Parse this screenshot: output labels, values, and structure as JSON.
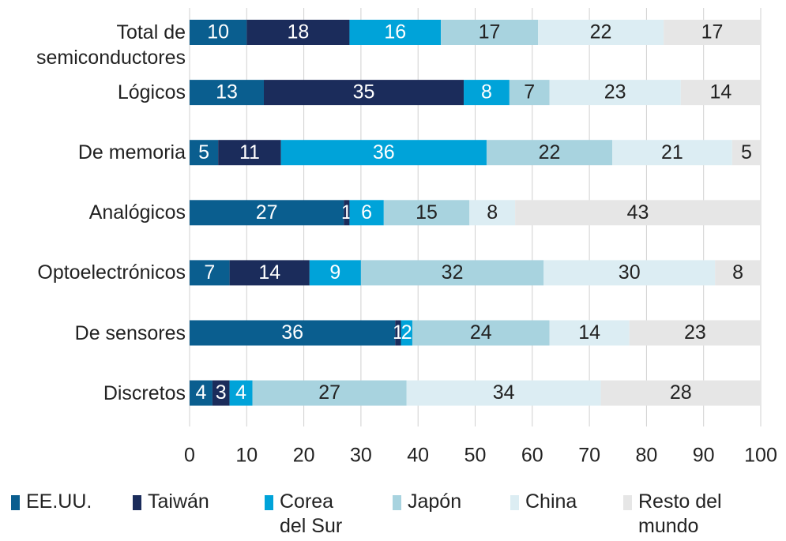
{
  "chart_data": {
    "type": "stacked-bar-horizontal",
    "categories": [
      "Total de semiconductores",
      "Lógicos",
      "De memoria",
      "Analógicos",
      "Optoelectrónicos",
      "De sensores",
      "Discretos"
    ],
    "series": [
      {
        "name": "EE.UU.",
        "color": "#0a5e8f",
        "values": [
          10,
          13,
          5,
          27,
          7,
          36,
          4
        ]
      },
      {
        "name": "Taiwán",
        "color": "#1b2c5b",
        "values": [
          18,
          35,
          11,
          1,
          14,
          1,
          3
        ]
      },
      {
        "name": "Corea del Sur",
        "color": "#00a3d9",
        "values": [
          16,
          8,
          36,
          6,
          9,
          2,
          4
        ]
      },
      {
        "name": "Japón",
        "color": "#a8d3df",
        "values": [
          17,
          7,
          22,
          15,
          32,
          24,
          27
        ]
      },
      {
        "name": "China",
        "color": "#dcedf3",
        "values": [
          22,
          23,
          21,
          8,
          30,
          14,
          34
        ]
      },
      {
        "name": "Resto del mundo",
        "color": "#e6e6e6",
        "values": [
          17,
          14,
          5,
          43,
          8,
          23,
          28
        ]
      }
    ],
    "xlim": [
      0,
      100
    ],
    "xticks": [
      0,
      10,
      20,
      30,
      40,
      50,
      60,
      70,
      80,
      90,
      100
    ],
    "grid": true
  }
}
